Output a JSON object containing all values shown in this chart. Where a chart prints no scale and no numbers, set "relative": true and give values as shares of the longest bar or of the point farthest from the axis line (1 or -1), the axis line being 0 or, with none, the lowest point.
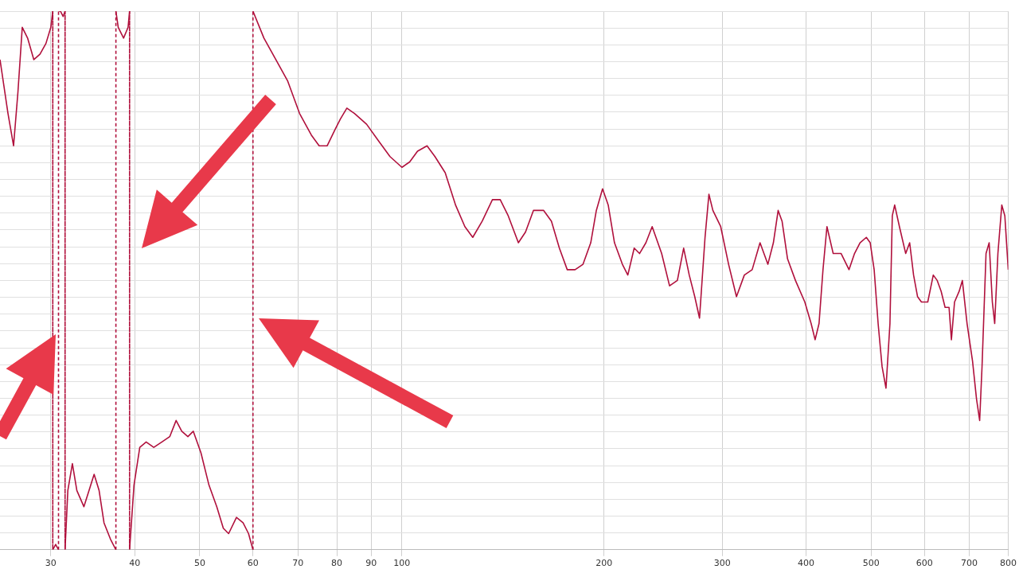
{
  "chart_data": {
    "type": "line",
    "relative": true,
    "log": "x",
    "grid": true,
    "legend": false,
    "marker": "none",
    "line_style": "solid",
    "tick_labels": "x",
    "xlim": [
      25.2,
      800
    ],
    "xticks": [
      30,
      40,
      50,
      60,
      70,
      80,
      90,
      100,
      200,
      300,
      400,
      500,
      600,
      700,
      800
    ],
    "series": [
      {
        "color": "#b0103c",
        "x": [
          25.2,
          25.9,
          26.4,
          26.8,
          27.2,
          27.7,
          28.3,
          28.9,
          29.5,
          30.0,
          30.2,
          30.2,
          30.5,
          30.8,
          30.8,
          31.0,
          31.3,
          31.5,
          31.5,
          31.8,
          32.3,
          32.8,
          33.6,
          34.2,
          34.8,
          35.4,
          36.0,
          36.8,
          37.5,
          37.5,
          37.8,
          38.5,
          39.1,
          39.3,
          39.3,
          39.9,
          40.7,
          41.6,
          42.7,
          43.9,
          45.1,
          46.1,
          47.0,
          48.0,
          48.9,
          50.2,
          51.6,
          53.0,
          54.2,
          55.2,
          56.7,
          58.0,
          59.1,
          60.0,
          60.0,
          62.3,
          64.9,
          67.6,
          70.4,
          73.3,
          75.3,
          77.4,
          79.5,
          81.0,
          82.8,
          85.0,
          88.6,
          92.2,
          96.0,
          100,
          102.7,
          105.5,
          109.0,
          112.0,
          116.0,
          120.2,
          124.1,
          127.5,
          131.7,
          136.4,
          140.1,
          144.0,
          149.1,
          152.8,
          157.0,
          162.6,
          167.0,
          171.6,
          176.3,
          181.1,
          186.1,
          191.1,
          194.8,
          199.0,
          202.9,
          207.3,
          213.0,
          217.0,
          221.8,
          225.9,
          230.9,
          235.9,
          243.7,
          250.4,
          257.2,
          262.8,
          267.9,
          273.0,
          277.5,
          282.8,
          286.6,
          290.5,
          298.4,
          306.6,
          315.0,
          323.6,
          332.4,
          341.5,
          350.8,
          357.5,
          363.4,
          368.3,
          375.3,
          385.6,
          398.2,
          406.9,
          412.5,
          418.1,
          423.8,
          429.6,
          438.9,
          451.0,
          463.4,
          472.2,
          481.2,
          491.7,
          498.3,
          505.1,
          512.0,
          519.0,
          526.0,
          533.2,
          537.5,
          541.9,
          550.8,
          562.8,
          570.5,
          578.2,
          586.1,
          594.0,
          607.0,
          618.6,
          627.0,
          635.5,
          644.2,
          653.0,
          658.3,
          665.4,
          676.1,
          683.5,
          694.6,
          707.8,
          717.5,
          725.3,
          731.2,
          741.3,
          749.3,
          757.5,
          763.7,
          772.1,
          782.5,
          790.7,
          800
        ],
        "values": [
          0.91,
          0.81,
          0.75,
          0.85,
          0.97,
          0.95,
          0.91,
          0.92,
          0.94,
          0.97,
          1,
          0,
          0.01,
          0,
          1,
          1,
          0.99,
          1,
          0,
          0.11,
          0.16,
          0.11,
          0.08,
          0.11,
          0.14,
          0.11,
          0.05,
          0.02,
          0,
          1,
          0.97,
          0.95,
          0.97,
          1,
          0,
          0.12,
          0.19,
          0.2,
          0.19,
          0.2,
          0.21,
          0.24,
          0.22,
          0.21,
          0.22,
          0.18,
          0.12,
          0.08,
          0.04,
          0.03,
          0.06,
          0.05,
          0.03,
          0,
          1,
          0.95,
          0.91,
          0.87,
          0.81,
          0.77,
          0.75,
          0.75,
          0.78,
          0.8,
          0.82,
          0.81,
          0.79,
          0.76,
          0.73,
          0.71,
          0.72,
          0.74,
          0.75,
          0.73,
          0.7,
          0.64,
          0.6,
          0.58,
          0.61,
          0.65,
          0.65,
          0.62,
          0.57,
          0.59,
          0.63,
          0.63,
          0.61,
          0.56,
          0.52,
          0.52,
          0.53,
          0.57,
          0.63,
          0.67,
          0.64,
          0.57,
          0.53,
          0.51,
          0.56,
          0.55,
          0.57,
          0.6,
          0.55,
          0.49,
          0.5,
          0.56,
          0.51,
          0.47,
          0.43,
          0.58,
          0.66,
          0.63,
          0.6,
          0.53,
          0.47,
          0.51,
          0.52,
          0.57,
          0.53,
          0.57,
          0.63,
          0.61,
          0.54,
          0.5,
          0.46,
          0.42,
          0.39,
          0.42,
          0.52,
          0.6,
          0.55,
          0.55,
          0.52,
          0.55,
          0.57,
          0.58,
          0.57,
          0.52,
          0.42,
          0.34,
          0.3,
          0.42,
          0.62,
          0.64,
          0.6,
          0.55,
          0.57,
          0.51,
          0.47,
          0.46,
          0.46,
          0.51,
          0.5,
          0.48,
          0.45,
          0.45,
          0.39,
          0.46,
          0.48,
          0.5,
          0.42,
          0.35,
          0.28,
          0.24,
          0.34,
          0.55,
          0.57,
          0.46,
          0.42,
          0.55,
          0.64,
          0.62,
          0.52
        ]
      }
    ]
  }
}
